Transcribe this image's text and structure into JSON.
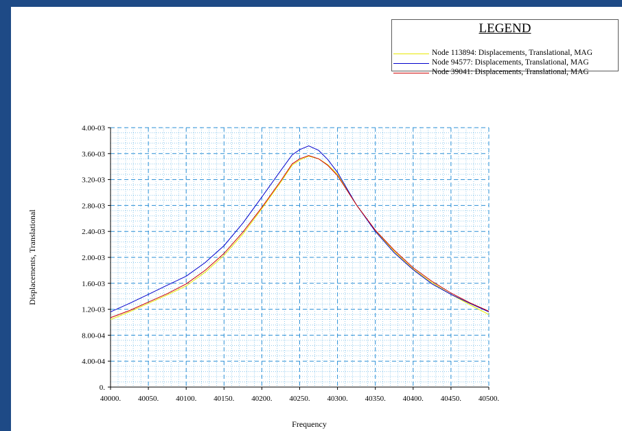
{
  "chart_data": {
    "type": "line",
    "title": "",
    "xlabel": "Frequency",
    "ylabel": "Displacements, Translational",
    "xlim": [
      40000,
      40500
    ],
    "ylim": [
      0,
      0.004
    ],
    "grid": true,
    "x_ticks": [
      {
        "v": 40000,
        "label": "40000."
      },
      {
        "v": 40050,
        "label": "40050."
      },
      {
        "v": 40100,
        "label": "40100."
      },
      {
        "v": 40150,
        "label": "40150."
      },
      {
        "v": 40200,
        "label": "40200."
      },
      {
        "v": 40250,
        "label": "40250."
      },
      {
        "v": 40300,
        "label": "40300."
      },
      {
        "v": 40350,
        "label": "40350."
      },
      {
        "v": 40400,
        "label": "40400."
      },
      {
        "v": 40450,
        "label": "40450."
      },
      {
        "v": 40500,
        "label": "40500."
      }
    ],
    "y_ticks": [
      {
        "v": 0,
        "label": "0."
      },
      {
        "v": 0.0004,
        "label": "4.00-04"
      },
      {
        "v": 0.0008,
        "label": "8.00-04"
      },
      {
        "v": 0.0012,
        "label": "1.20-03"
      },
      {
        "v": 0.0016,
        "label": "1.60-03"
      },
      {
        "v": 0.002,
        "label": "2.00-03"
      },
      {
        "v": 0.0024,
        "label": "2.40-03"
      },
      {
        "v": 0.0028,
        "label": "2.80-03"
      },
      {
        "v": 0.0032,
        "label": "3.20-03"
      },
      {
        "v": 0.0036,
        "label": "3.60-03"
      },
      {
        "v": 0.004,
        "label": "4.00-03"
      }
    ],
    "legend": {
      "title": "LEGEND",
      "placement": "top-right"
    },
    "series": [
      {
        "name": "Node 113894: Displacements, Translational, MAG",
        "color": "#e8e800",
        "x": [
          40000,
          40025,
          40050,
          40075,
          40100,
          40125,
          40150,
          40175,
          40200,
          40225,
          40240,
          40250,
          40262,
          40275,
          40287,
          40300,
          40325,
          40350,
          40375,
          40400,
          40425,
          40450,
          40475,
          40500
        ],
        "y": [
          0.00104,
          0.00116,
          0.00129,
          0.00142,
          0.00156,
          0.00177,
          0.00203,
          0.00236,
          0.00275,
          0.00316,
          0.00342,
          0.0035,
          0.00356,
          0.00352,
          0.00343,
          0.00328,
          0.00281,
          0.00241,
          0.00209,
          0.00182,
          0.00161,
          0.00143,
          0.00127,
          0.00112
        ]
      },
      {
        "name": "Node 94577: Displacements, Translational, MAG",
        "color": "#0000cc",
        "x": [
          40000,
          40025,
          40050,
          40075,
          40100,
          40125,
          40150,
          40175,
          40200,
          40225,
          40240,
          40250,
          40262,
          40275,
          40287,
          40300,
          40325,
          40350,
          40375,
          40400,
          40425,
          40450,
          40475,
          40500
        ],
        "y": [
          0.00116,
          0.00129,
          0.00143,
          0.00157,
          0.00171,
          0.00192,
          0.00218,
          0.00253,
          0.00293,
          0.00334,
          0.00358,
          0.00366,
          0.00372,
          0.00365,
          0.00351,
          0.00331,
          0.00281,
          0.0024,
          0.00207,
          0.00181,
          0.00159,
          0.00143,
          0.00129,
          0.00116
        ]
      },
      {
        "name": "Node 39041: Displacements, Translational, MAG",
        "color": "#cc0000",
        "x": [
          40000,
          40025,
          40050,
          40075,
          40100,
          40125,
          40150,
          40175,
          40200,
          40225,
          40240,
          40250,
          40262,
          40275,
          40287,
          40300,
          40325,
          40350,
          40375,
          40400,
          40425,
          40450,
          40475,
          40500
        ],
        "y": [
          0.00107,
          0.00118,
          0.00131,
          0.00144,
          0.00159,
          0.0018,
          0.00206,
          0.00239,
          0.00277,
          0.00318,
          0.00344,
          0.00352,
          0.00357,
          0.00352,
          0.00342,
          0.00326,
          0.00281,
          0.00242,
          0.00211,
          0.00184,
          0.00163,
          0.00145,
          0.0013,
          0.00117
        ]
      }
    ]
  }
}
